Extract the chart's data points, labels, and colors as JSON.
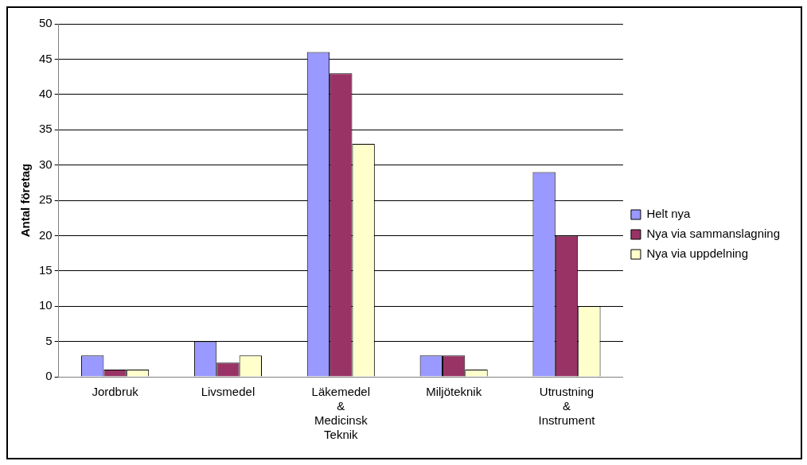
{
  "chart_data": {
    "type": "bar",
    "ylabel": "Antal företag",
    "categories": [
      "Jordbruk",
      "Livsmedel",
      "Läkemedel & Medicinsk Teknik",
      "Miljöteknik",
      "Utrustning & Instrument"
    ],
    "series": [
      {
        "name": "Helt nya",
        "color": "#9999ff",
        "values": [
          3,
          5,
          46,
          3,
          29
        ]
      },
      {
        "name": "Nya via sammanslagning",
        "color": "#993366",
        "values": [
          1,
          2,
          43,
          3,
          20
        ]
      },
      {
        "name": "Nya via uppdelning",
        "color": "#ffffcc",
        "values": [
          1,
          3,
          33,
          1,
          10
        ]
      }
    ],
    "ylim": [
      0,
      50
    ],
    "yticks": [
      0,
      5,
      10,
      15,
      20,
      25,
      30,
      35,
      40,
      45,
      50
    ],
    "grid": "y",
    "legend": "right"
  }
}
